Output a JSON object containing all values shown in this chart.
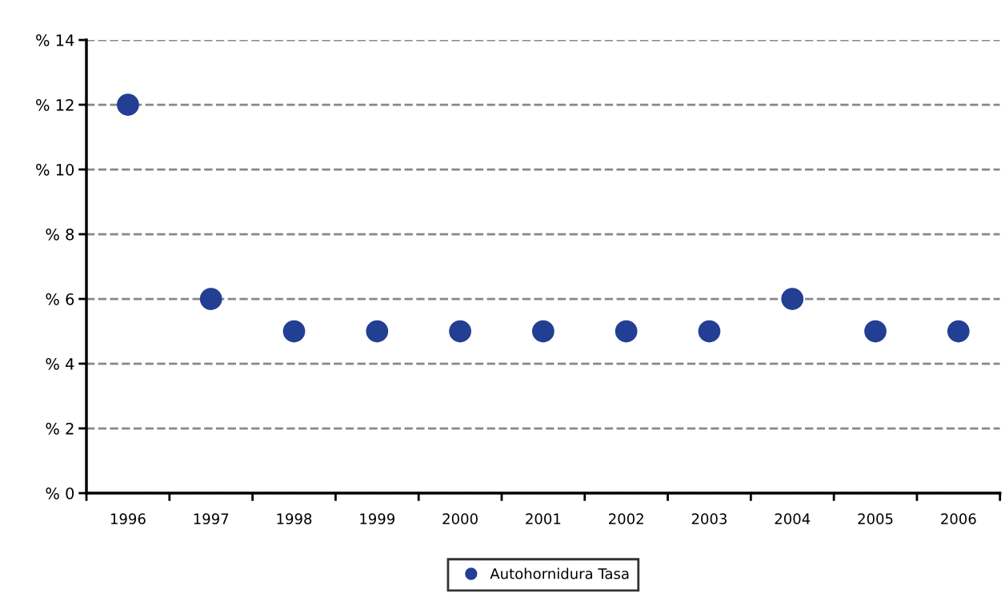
{
  "chart_data": {
    "type": "scatter",
    "categories": [
      "1996",
      "1997",
      "1998",
      "1999",
      "2000",
      "2001",
      "2002",
      "2003",
      "2004",
      "2005",
      "2006"
    ],
    "series": [
      {
        "name": "Autohornidura Tasa",
        "color": "#233f94",
        "values": [
          12,
          6,
          5,
          5,
          5,
          5,
          5,
          5,
          6,
          5,
          5
        ]
      }
    ],
    "ylim": [
      0,
      14
    ],
    "yticks": [
      {
        "value": 0,
        "label": "% 0"
      },
      {
        "value": 2,
        "label": "% 2"
      },
      {
        "value": 4,
        "label": "% 4"
      },
      {
        "value": 6,
        "label": "% 6"
      },
      {
        "value": 8,
        "label": "% 8"
      },
      {
        "value": 10,
        "label": "% 10"
      },
      {
        "value": 12,
        "label": "% 12"
      },
      {
        "value": 14,
        "label": "% 14"
      }
    ],
    "grid": "y",
    "legend": "bottom",
    "marker": "circle"
  }
}
